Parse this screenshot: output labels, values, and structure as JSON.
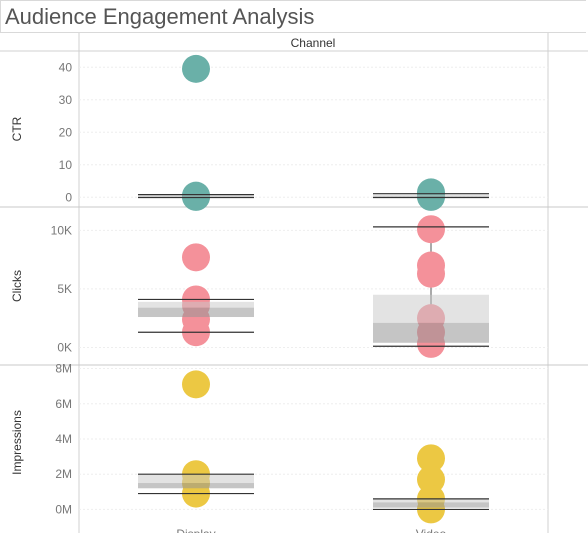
{
  "title": "Audience Engagement Analysis",
  "chart_data": {
    "type": "scatter",
    "column_header": "Channel",
    "categories": [
      "Display",
      "Video"
    ],
    "panels": [
      {
        "measure": "CTR",
        "color": "#6ab0a8",
        "ylim": [
          -3,
          45
        ],
        "ticks": [
          0,
          10,
          20,
          30,
          40
        ],
        "tick_labels": [
          "0",
          "10",
          "20",
          "30",
          "40"
        ],
        "points": {
          "Display": [
            39.5,
            0.5,
            0.2,
            0.1
          ],
          "Video": [
            1.5,
            0.8,
            0.3,
            0.1
          ]
        },
        "box": {
          "Display": {
            "whisker_low": -0.1,
            "q1": 0.1,
            "median": 0.3,
            "q3": 0.6,
            "whisker_high": 0.8
          },
          "Video": {
            "whisker_low": -0.1,
            "q1": 0.1,
            "median": 0.4,
            "q3": 0.8,
            "whisker_high": 1.1
          }
        }
      },
      {
        "measure": "Clicks",
        "color": "#f4919a",
        "ylim": [
          -1500,
          12000
        ],
        "ticks": [
          0,
          5000,
          10000
        ],
        "tick_labels": [
          "0K",
          "5K",
          "10K"
        ],
        "points": {
          "Display": [
            7700,
            4100,
            3600,
            2400,
            1300
          ],
          "Video": [
            10100,
            7000,
            6300,
            2500,
            1300,
            300
          ]
        },
        "box": {
          "Display": {
            "whisker_low": 1300,
            "q1": 2600,
            "median": 3400,
            "q3": 3900,
            "whisker_high": 4100
          },
          "Video": {
            "whisker_low": 100,
            "q1": 400,
            "median": 2100,
            "q3": 4500,
            "whisker_high": 10300
          }
        }
      },
      {
        "measure": "Impressions",
        "color": "#ecc843",
        "ylim": [
          -600000,
          8200000
        ],
        "ticks": [
          0,
          2000000,
          4000000,
          6000000,
          8000000
        ],
        "tick_labels": [
          "0M",
          "2M",
          "4M",
          "6M",
          "8M"
        ],
        "points": {
          "Display": [
            7100000,
            2000000,
            1500000,
            900000
          ],
          "Video": [
            2900000,
            1700000,
            600000,
            0
          ]
        },
        "box": {
          "Display": {
            "whisker_low": 900000,
            "q1": 1200000,
            "median": 1500000,
            "q3": 2000000,
            "whisker_high": 2000000
          },
          "Video": {
            "whisker_low": 0,
            "q1": 100000,
            "median": 400000,
            "q3": 600000,
            "whisker_high": 600000
          }
        }
      }
    ]
  }
}
